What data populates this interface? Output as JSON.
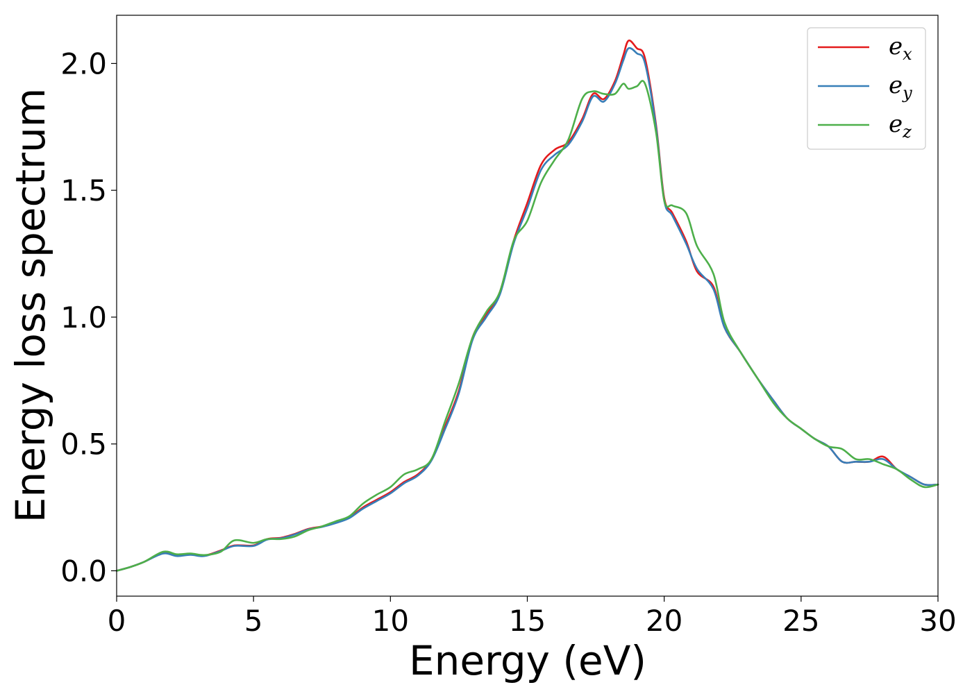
{
  "chart_data": {
    "type": "line",
    "xlabel": "Energy (eV)",
    "ylabel": "Energy loss spectrum",
    "xlim": [
      0,
      30
    ],
    "ylim": [
      -0.1,
      2.19
    ],
    "xticks": [
      0,
      5,
      10,
      15,
      20,
      25,
      30
    ],
    "xtick_labels": [
      "0",
      "5",
      "10",
      "15",
      "20",
      "25",
      "30"
    ],
    "yticks": [
      0.0,
      0.5,
      1.0,
      1.5,
      2.0
    ],
    "ytick_labels": [
      "0.0",
      "0.5",
      "1.0",
      "1.5",
      "2.0"
    ],
    "grid": false,
    "legend_position": "top-right",
    "series": [
      {
        "name": "e_x",
        "legend_base": "e",
        "legend_sub": "x",
        "color": "#e41a1c",
        "x": [
          0,
          0.5,
          1,
          1.7,
          2.2,
          2.7,
          3.2,
          3.8,
          4.3,
          5,
          5.5,
          6,
          6.5,
          7,
          7.5,
          8,
          8.5,
          9,
          9.5,
          10,
          10.5,
          11,
          11.5,
          12,
          12.5,
          13,
          13.5,
          14,
          14.5,
          15,
          15.5,
          16,
          16.5,
          17,
          17.4,
          17.8,
          18.2,
          18.5,
          18.7,
          19,
          19.3,
          19.7,
          20,
          20.3,
          20.8,
          21.2,
          21.8,
          22.2,
          22.8,
          23.4,
          24,
          24.5,
          25,
          25.5,
          26,
          26.5,
          27,
          27.5,
          28,
          28.5,
          29,
          29.5,
          30
        ],
        "y": [
          0.0,
          0.015,
          0.035,
          0.07,
          0.06,
          0.065,
          0.06,
          0.08,
          0.1,
          0.1,
          0.125,
          0.13,
          0.145,
          0.165,
          0.175,
          0.19,
          0.21,
          0.25,
          0.28,
          0.31,
          0.35,
          0.38,
          0.44,
          0.57,
          0.71,
          0.92,
          1.01,
          1.1,
          1.3,
          1.45,
          1.6,
          1.66,
          1.69,
          1.78,
          1.88,
          1.86,
          1.93,
          2.03,
          2.09,
          2.06,
          2.02,
          1.76,
          1.47,
          1.41,
          1.3,
          1.18,
          1.12,
          0.96,
          0.86,
          0.76,
          0.67,
          0.6,
          0.56,
          0.52,
          0.49,
          0.43,
          0.43,
          0.43,
          0.45,
          0.4,
          0.37,
          0.34,
          0.34
        ]
      },
      {
        "name": "e_y",
        "legend_base": "e",
        "legend_sub": "y",
        "color": "#377eb8",
        "x": [
          0,
          0.5,
          1,
          1.7,
          2.2,
          2.7,
          3.2,
          3.8,
          4.3,
          5,
          5.5,
          6,
          6.5,
          7,
          7.5,
          8,
          8.5,
          9,
          9.5,
          10,
          10.5,
          11,
          11.5,
          12,
          12.5,
          13,
          13.5,
          14,
          14.5,
          15,
          15.5,
          16,
          16.5,
          17,
          17.4,
          17.8,
          18.2,
          18.5,
          18.7,
          19,
          19.3,
          19.7,
          20,
          20.3,
          20.8,
          21.2,
          21.8,
          22.2,
          22.8,
          23.4,
          24,
          24.5,
          25,
          25.5,
          26,
          26.5,
          27,
          27.5,
          28,
          28.5,
          29,
          29.5,
          30
        ],
        "y": [
          0.0,
          0.015,
          0.035,
          0.068,
          0.058,
          0.063,
          0.058,
          0.078,
          0.098,
          0.098,
          0.123,
          0.128,
          0.143,
          0.163,
          0.173,
          0.188,
          0.208,
          0.245,
          0.275,
          0.305,
          0.345,
          0.375,
          0.435,
          0.56,
          0.7,
          0.91,
          1.0,
          1.09,
          1.29,
          1.43,
          1.58,
          1.64,
          1.68,
          1.77,
          1.87,
          1.85,
          1.92,
          2.01,
          2.06,
          2.04,
          2.0,
          1.75,
          1.46,
          1.4,
          1.29,
          1.19,
          1.11,
          0.96,
          0.86,
          0.76,
          0.67,
          0.6,
          0.56,
          0.52,
          0.49,
          0.43,
          0.43,
          0.43,
          0.44,
          0.4,
          0.37,
          0.34,
          0.34
        ]
      },
      {
        "name": "e_z",
        "legend_base": "e",
        "legend_sub": "z",
        "color": "#4daf4a",
        "x": [
          0,
          0.5,
          1,
          1.7,
          2.2,
          2.7,
          3.2,
          3.8,
          4.3,
          5,
          5.5,
          6,
          6.5,
          7,
          7.5,
          8,
          8.5,
          9,
          9.5,
          10,
          10.5,
          11,
          11.5,
          12,
          12.5,
          13,
          13.5,
          14,
          14.5,
          15,
          15.5,
          16,
          16.5,
          17,
          17.4,
          17.8,
          18.2,
          18.5,
          18.7,
          19,
          19.3,
          19.7,
          20,
          20.3,
          20.8,
          21.2,
          21.8,
          22.2,
          22.8,
          23.4,
          24,
          24.5,
          25,
          25.5,
          26,
          26.5,
          27,
          27.5,
          28,
          28.5,
          29,
          29.5,
          30
        ],
        "y": [
          0.0,
          0.015,
          0.035,
          0.075,
          0.065,
          0.068,
          0.062,
          0.075,
          0.12,
          0.11,
          0.125,
          0.125,
          0.135,
          0.16,
          0.175,
          0.195,
          0.215,
          0.265,
          0.3,
          0.33,
          0.38,
          0.4,
          0.44,
          0.59,
          0.74,
          0.92,
          1.02,
          1.1,
          1.3,
          1.38,
          1.53,
          1.62,
          1.7,
          1.86,
          1.89,
          1.88,
          1.88,
          1.92,
          1.9,
          1.91,
          1.92,
          1.73,
          1.46,
          1.44,
          1.41,
          1.28,
          1.17,
          0.98,
          0.86,
          0.76,
          0.66,
          0.6,
          0.56,
          0.52,
          0.49,
          0.48,
          0.44,
          0.44,
          0.42,
          0.4,
          0.36,
          0.33,
          0.34
        ]
      }
    ]
  }
}
